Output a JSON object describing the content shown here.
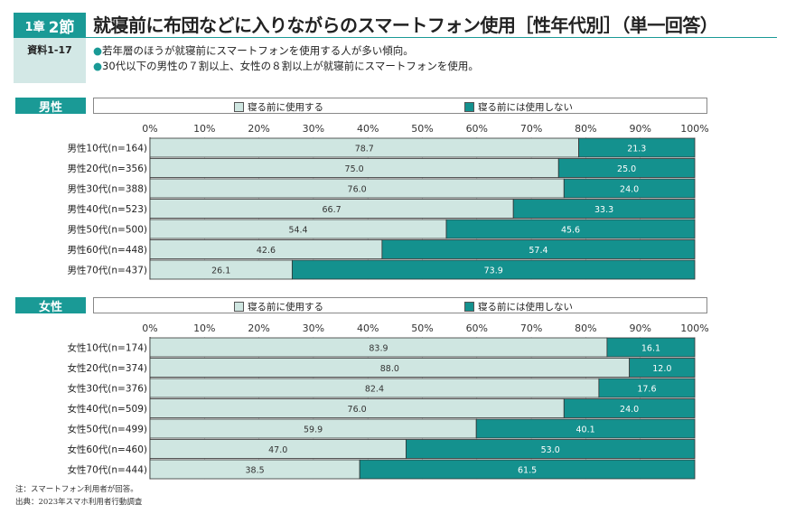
{
  "header": {
    "chapter": "1章",
    "section": "2節",
    "title": "就寝前に布団などに入りながらのスマートフォン使用［性年代別］（単一回答）",
    "source_id": "資料1-17",
    "bullets": [
      "若年層のほうが就寝前にスマートフォンを使用する人が多い傾向。",
      "30代以下の男性の７割以上、女性の８割以上が就寝前にスマートフォンを使用。"
    ]
  },
  "colors": {
    "use": "#cfe6e1",
    "no_use": "#14918e",
    "accent": "#1a9a96"
  },
  "chart_data": [
    {
      "type": "bar",
      "stacked": true,
      "orientation": "horizontal",
      "panel_label": "男性",
      "categories": [
        "男性10代(n=164)",
        "男性20代(n=356)",
        "男性30代(n=388)",
        "男性40代(n=523)",
        "男性50代(n=500)",
        "男性60代(n=448)",
        "男性70代(n=437)"
      ],
      "series": [
        {
          "name": "寝る前に使用する",
          "values": [
            78.7,
            75.0,
            76.0,
            66.7,
            54.4,
            42.6,
            26.1
          ]
        },
        {
          "name": "寝る前には使用しない",
          "values": [
            21.3,
            25.0,
            24.0,
            33.3,
            45.6,
            57.4,
            73.9
          ]
        }
      ],
      "xlim": [
        0,
        100
      ],
      "xticks": [
        "0%",
        "10%",
        "20%",
        "30%",
        "40%",
        "50%",
        "60%",
        "70%",
        "80%",
        "90%",
        "100%"
      ],
      "legend": "top",
      "grid": true
    },
    {
      "type": "bar",
      "stacked": true,
      "orientation": "horizontal",
      "panel_label": "女性",
      "categories": [
        "女性10代(n=174)",
        "女性20代(n=374)",
        "女性30代(n=376)",
        "女性40代(n=509)",
        "女性50代(n=499)",
        "女性60代(n=460)",
        "女性70代(n=444)"
      ],
      "series": [
        {
          "name": "寝る前に使用する",
          "values": [
            83.9,
            88.0,
            82.4,
            76.0,
            59.9,
            47.0,
            38.5
          ]
        },
        {
          "name": "寝る前には使用しない",
          "values": [
            16.1,
            12.0,
            17.6,
            24.0,
            40.1,
            53.0,
            61.5
          ]
        }
      ],
      "xlim": [
        0,
        100
      ],
      "xticks": [
        "0%",
        "10%",
        "20%",
        "30%",
        "40%",
        "50%",
        "60%",
        "70%",
        "80%",
        "90%",
        "100%"
      ],
      "legend": "top",
      "grid": true
    }
  ],
  "notes": [
    "注：スマートフォン利用者が回答。",
    "出典：2023年スマホ利用者行動調査"
  ]
}
